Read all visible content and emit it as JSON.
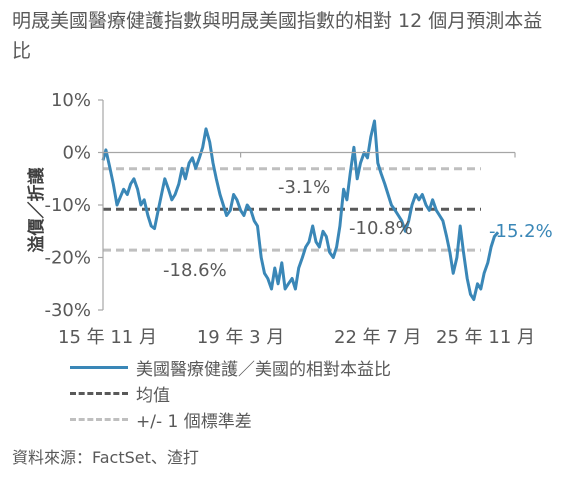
{
  "title": "明晟美國醫療健護指數與明晟美國指數的相對 12 個月預測本益比",
  "source": "資料來源：FactSet、渣打",
  "chart_data": {
    "type": "line",
    "ylabel": "溢價／折讓",
    "yticks": [
      "10%",
      "0%",
      "-10%",
      "-20%",
      "-30%"
    ],
    "ytick_values": [
      10,
      0,
      -10,
      -20,
      -30
    ],
    "ylim": [
      -30,
      10
    ],
    "xticks": [
      "15 年 11 月",
      "19 年 3 月",
      "22 年 7 月",
      "25 年 11 月"
    ],
    "xtick_values": [
      2015.83,
      2019.17,
      2022.5,
      2025.83
    ],
    "xlim": [
      2015.83,
      2025.83
    ],
    "series": [
      {
        "name": "美國醫療健護／美國的相對本益比",
        "color": "#3a87b7",
        "x": [
          2015.83,
          2015.9,
          2016.0,
          2016.08,
          2016.17,
          2016.25,
          2016.33,
          2016.42,
          2016.5,
          2016.58,
          2016.67,
          2016.75,
          2016.83,
          2016.92,
          2017.0,
          2017.08,
          2017.17,
          2017.25,
          2017.33,
          2017.42,
          2017.5,
          2017.58,
          2017.67,
          2017.75,
          2017.83,
          2017.92,
          2018.0,
          2018.08,
          2018.17,
          2018.25,
          2018.33,
          2018.42,
          2018.5,
          2018.58,
          2018.67,
          2018.75,
          2018.83,
          2018.92,
          2019.0,
          2019.08,
          2019.17,
          2019.25,
          2019.33,
          2019.42,
          2019.5,
          2019.58,
          2019.67,
          2019.75,
          2019.83,
          2019.92,
          2020.0,
          2020.08,
          2020.17,
          2020.25,
          2020.33,
          2020.42,
          2020.5,
          2020.58,
          2020.67,
          2020.75,
          2020.83,
          2020.92,
          2021.0,
          2021.08,
          2021.17,
          2021.25,
          2021.33,
          2021.42,
          2021.5,
          2021.58,
          2021.67,
          2021.75,
          2021.83,
          2021.92,
          2022.0,
          2022.08,
          2022.17,
          2022.25,
          2022.33,
          2022.42,
          2022.5,
          2022.58,
          2022.67,
          2022.75,
          2022.83,
          2022.92,
          2023.0,
          2023.08,
          2023.17,
          2023.25,
          2023.33,
          2023.42,
          2023.5,
          2023.58,
          2023.67,
          2023.75,
          2023.83,
          2023.92,
          2024.0,
          2024.08,
          2024.17,
          2024.25,
          2024.33,
          2024.42,
          2024.5,
          2024.58,
          2024.67,
          2024.75,
          2024.83,
          2024.92,
          2025.0,
          2025.08,
          2025.17,
          2025.25,
          2025.33,
          2025.42
        ],
        "y": [
          -1.5,
          0.5,
          -3,
          -6,
          -10,
          -8.5,
          -7,
          -8,
          -6,
          -5,
          -7,
          -10,
          -9,
          -12,
          -14,
          -14.5,
          -11,
          -8,
          -5,
          -7,
          -9,
          -8,
          -6,
          -3,
          -5,
          -2,
          -1,
          -3,
          -1,
          1,
          4.5,
          2,
          -2,
          -5,
          -8,
          -10,
          -12,
          -11,
          -8,
          -9,
          -11,
          -12,
          -10,
          -11,
          -13,
          -14,
          -20,
          -23,
          -24,
          -26,
          -22,
          -25,
          -21,
          -26,
          -25,
          -24,
          -26,
          -22,
          -20,
          -18,
          -17,
          -14,
          -17,
          -18,
          -15,
          -16,
          -19,
          -20,
          -18,
          -14,
          -7,
          -9,
          -4,
          1,
          -5,
          -2,
          0,
          -1,
          3,
          6,
          -2,
          -4,
          -6,
          -8,
          -10,
          -11,
          -12,
          -13,
          -15,
          -13,
          -10,
          -8,
          -9,
          -8,
          -10,
          -11,
          -9,
          -11,
          -12,
          -13,
          -16,
          -19,
          -23,
          -20,
          -14,
          -19,
          -24,
          -27,
          -28,
          -25,
          -26,
          -23,
          -21,
          -18,
          -16,
          -15.2
        ]
      },
      {
        "name": "均值",
        "color": "#595959",
        "value": -10.8
      },
      {
        "name": "+/- 1 個標準差",
        "color": "#bfbfbf",
        "values": [
          -3.1,
          -18.6
        ]
      }
    ],
    "annotations": {
      "upper": "-3.1%",
      "mean": "-10.8%",
      "lower": "-18.6%",
      "last": "-15.2%"
    },
    "legend": {
      "placement": "bottom-left"
    }
  }
}
